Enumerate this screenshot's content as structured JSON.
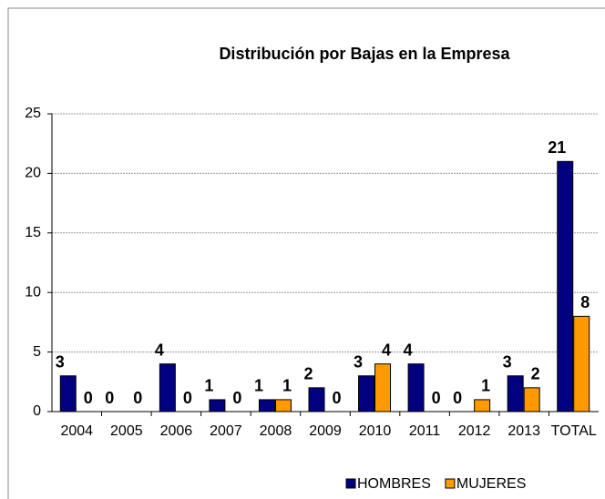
{
  "chart_data": {
    "type": "bar",
    "title": "Distribución por Bajas en la Empresa",
    "categories": [
      "2004",
      "2005",
      "2006",
      "2007",
      "2008",
      "2009",
      "2010",
      "2011",
      "2012",
      "2013",
      "TOTAL"
    ],
    "series": [
      {
        "name": "HOMBRES",
        "color": "#000080",
        "values": [
          3,
          0,
          4,
          1,
          1,
          2,
          3,
          4,
          0,
          3,
          21
        ]
      },
      {
        "name": "MUJERES",
        "color": "#FF9900",
        "values": [
          0,
          0,
          0,
          0,
          1,
          0,
          4,
          0,
          1,
          2,
          8
        ]
      }
    ],
    "ylim": [
      0,
      25
    ],
    "yticks": [
      0,
      5,
      10,
      15,
      20,
      25
    ],
    "grid": true,
    "legend": "bottom-right"
  }
}
